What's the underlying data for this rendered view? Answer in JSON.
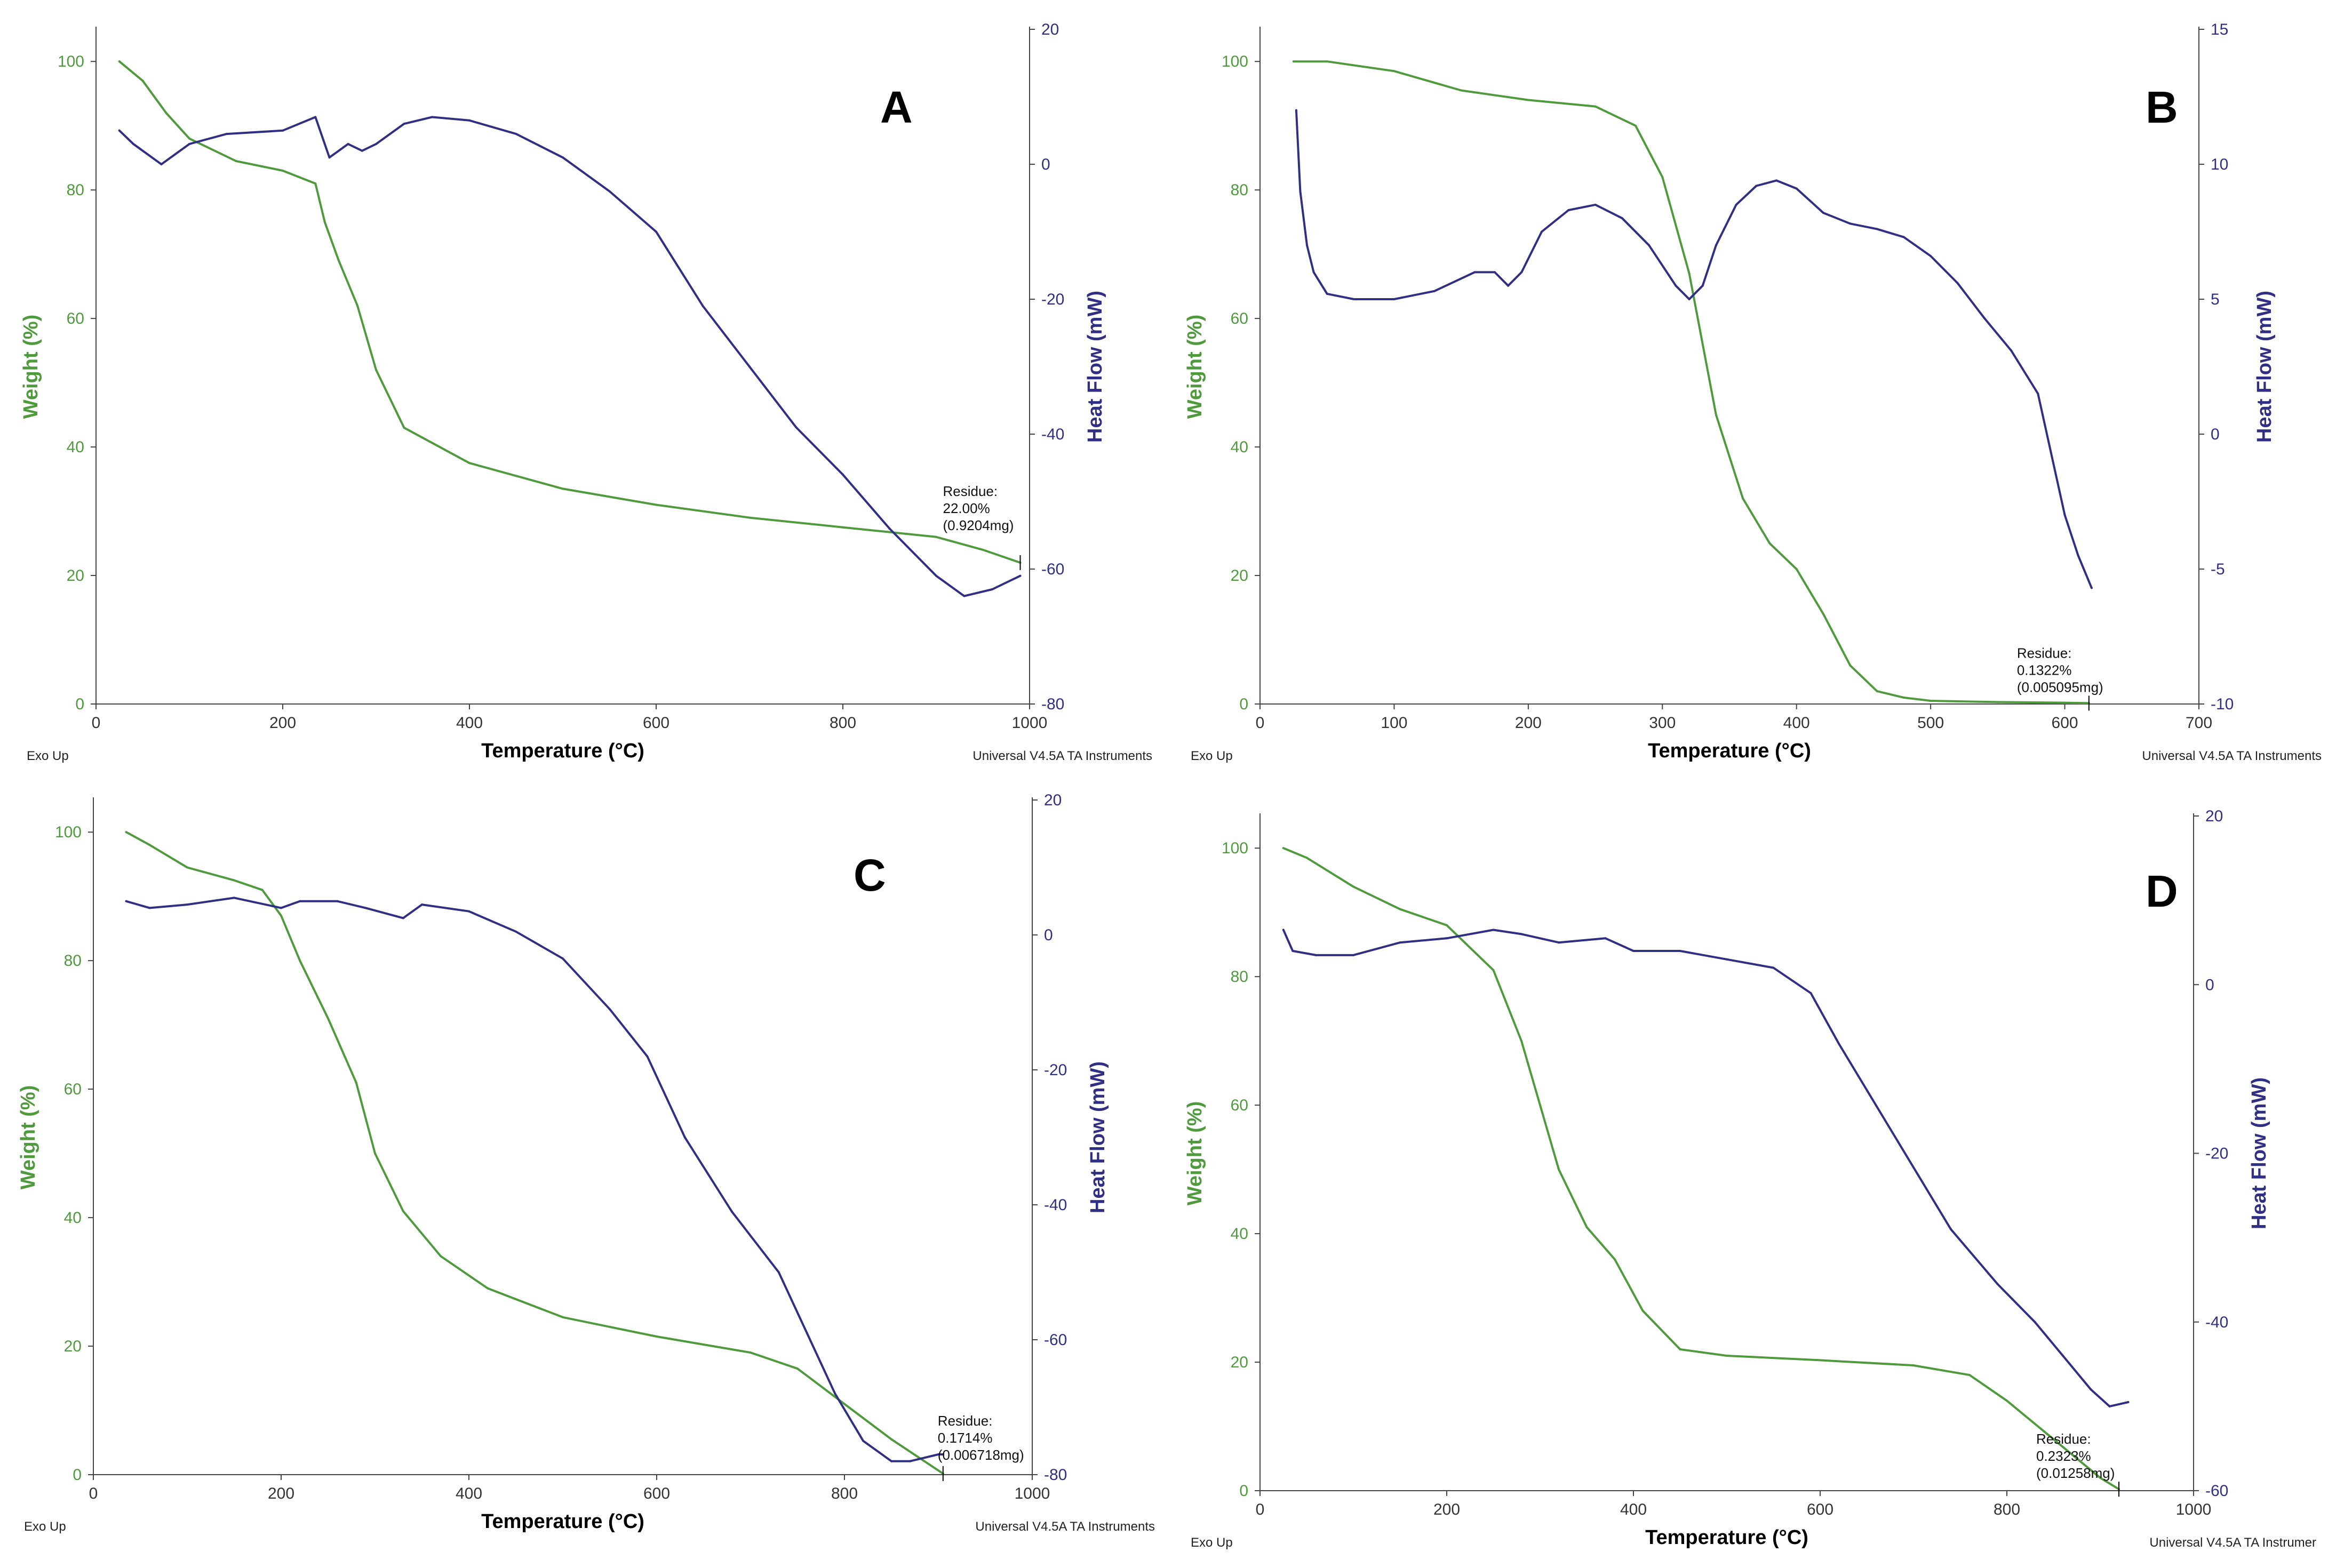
{
  "figure": {
    "colors": {
      "weight": "#4e9a3c",
      "heat": "#2f2f84",
      "axis": "#444444",
      "text": "#000000"
    }
  },
  "chart_data": [
    {
      "type": "line",
      "panel_label": "A",
      "xlabel": "Temperature (°C)",
      "ylabel_left": "Weight (%)",
      "ylabel_right": "Heat Flow (mW)",
      "footer_left": "Exo Up",
      "footer_right": "Universal V4.5A TA Instruments",
      "xlim": [
        0,
        1000
      ],
      "xticks": [
        "0",
        "200",
        "400",
        "600",
        "800",
        "1000"
      ],
      "ylim_left": [
        0,
        105
      ],
      "yticks_left": [
        "0",
        "20",
        "40",
        "60",
        "80",
        "100"
      ],
      "ylim_right": [
        -80,
        20
      ],
      "yticks_right": [
        "-80",
        "-60",
        "-40",
        "-20",
        "0",
        "20"
      ],
      "annotation": {
        "lines": [
          "Residue:",
          "22.00%",
          "(0.9204mg)"
        ],
        "temp": 990,
        "weight": 22
      },
      "series": [
        {
          "name": "Weight (%)",
          "axis": "left",
          "x": [
            25,
            50,
            75,
            100,
            150,
            200,
            235,
            245,
            260,
            280,
            300,
            330,
            400,
            500,
            600,
            700,
            800,
            900,
            950,
            990
          ],
          "y": [
            100,
            97,
            92,
            88,
            84.5,
            83,
            81,
            75,
            69,
            62,
            52,
            43,
            37.5,
            33.5,
            31,
            29,
            27.5,
            26,
            24,
            22
          ]
        },
        {
          "name": "Heat Flow (mW)",
          "axis": "right",
          "x": [
            25,
            40,
            70,
            100,
            140,
            200,
            235,
            250,
            270,
            285,
            300,
            330,
            360,
            400,
            450,
            500,
            550,
            600,
            650,
            700,
            750,
            800,
            850,
            900,
            930,
            960,
            990
          ],
          "y": [
            5,
            3,
            0,
            3,
            4.5,
            5,
            7,
            1,
            3,
            2,
            3,
            6,
            7,
            6.5,
            4.5,
            1,
            -4,
            -10,
            -21,
            -30,
            -39,
            -46,
            -54,
            -61,
            -64,
            -63,
            -61
          ]
        }
      ]
    },
    {
      "type": "line",
      "panel_label": "B",
      "xlabel": "Temperature (°C)",
      "ylabel_left": "Weight (%)",
      "ylabel_right": "Heat Flow (mW)",
      "footer_left": "Exo Up",
      "footer_right": "Universal V4.5A TA Instruments",
      "xlim": [
        0,
        700
      ],
      "xticks": [
        "0",
        "100",
        "200",
        "300",
        "400",
        "500",
        "600",
        "700"
      ],
      "ylim_left": [
        0,
        105
      ],
      "yticks_left": [
        "0",
        "20",
        "40",
        "60",
        "80",
        "100"
      ],
      "ylim_right": [
        -10,
        15
      ],
      "yticks_right": [
        "-10",
        "-5",
        "0",
        "5",
        "10",
        "15"
      ],
      "annotation": {
        "lines": [
          "Residue:",
          "0.1322%",
          "(0.005095mg)"
        ],
        "temp": 618,
        "weight": 0.13
      },
      "series": [
        {
          "name": "Weight (%)",
          "axis": "left",
          "x": [
            25,
            50,
            100,
            150,
            200,
            250,
            280,
            300,
            320,
            340,
            360,
            380,
            400,
            420,
            440,
            460,
            480,
            500,
            550,
            600,
            618
          ],
          "y": [
            100,
            100,
            98.5,
            95.5,
            94,
            93,
            90,
            82,
            67,
            45,
            32,
            25,
            21,
            14,
            6,
            2,
            1,
            0.5,
            0.3,
            0.2,
            0.13
          ]
        },
        {
          "name": "Heat Flow (mW)",
          "axis": "right",
          "x": [
            27,
            30,
            35,
            40,
            50,
            70,
            100,
            130,
            160,
            175,
            185,
            195,
            210,
            230,
            250,
            270,
            290,
            310,
            320,
            330,
            340,
            355,
            370,
            385,
            400,
            420,
            440,
            460,
            480,
            500,
            520,
            540,
            560,
            580,
            600,
            610,
            620
          ],
          "y": [
            12,
            9,
            7,
            6,
            5.2,
            5,
            5,
            5.3,
            6,
            6,
            5.5,
            6,
            7.5,
            8.3,
            8.5,
            8,
            7,
            5.5,
            5,
            5.5,
            7,
            8.5,
            9.2,
            9.4,
            9.1,
            8.2,
            7.8,
            7.6,
            7.3,
            6.6,
            5.6,
            4.3,
            3.1,
            1.5,
            -3,
            -4.5,
            -5.7
          ]
        }
      ]
    },
    {
      "type": "line",
      "panel_label": "C",
      "xlabel": "Temperature (°C)",
      "ylabel_left": "Weight (%)",
      "ylabel_right": "Heat Flow (mW)",
      "footer_left": "Exo Up",
      "footer_right": "Universal V4.5A TA Instruments",
      "xlim": [
        0,
        1000
      ],
      "xticks": [
        "0",
        "200",
        "400",
        "600",
        "800",
        "1000"
      ],
      "ylim_left": [
        0,
        105
      ],
      "yticks_left": [
        "0",
        "20",
        "40",
        "60",
        "80",
        "100"
      ],
      "ylim_right": [
        -80,
        20
      ],
      "yticks_right": [
        "-80",
        "-60",
        "-40",
        "-20",
        "0",
        "20"
      ],
      "annotation": {
        "lines": [
          "Residue:",
          "0.1714%",
          "(0.006718mg)"
        ],
        "temp": 905,
        "weight": 0.17
      },
      "series": [
        {
          "name": "Weight (%)",
          "axis": "left",
          "x": [
            35,
            60,
            100,
            150,
            180,
            200,
            220,
            250,
            280,
            300,
            330,
            370,
            420,
            500,
            600,
            700,
            750,
            800,
            850,
            905
          ],
          "y": [
            100,
            98,
            94.5,
            92.5,
            91,
            87,
            80,
            71,
            61,
            50,
            41,
            34,
            29,
            24.5,
            21.5,
            19,
            16.5,
            11,
            5.5,
            0.17
          ]
        },
        {
          "name": "Heat Flow (mW)",
          "axis": "right",
          "x": [
            35,
            60,
            100,
            150,
            200,
            220,
            260,
            290,
            330,
            350,
            400,
            450,
            500,
            550,
            590,
            630,
            680,
            730,
            760,
            790,
            820,
            850,
            870,
            900,
            905
          ],
          "y": [
            5,
            4,
            4.5,
            5.5,
            4,
            5,
            5,
            4,
            2.5,
            4.5,
            3.5,
            0.5,
            -3.5,
            -11,
            -18,
            -30,
            -41,
            -50,
            -59,
            -68,
            -75,
            -78,
            -78,
            -77,
            -77
          ]
        }
      ]
    },
    {
      "type": "line",
      "panel_label": "D",
      "xlabel": "Temperature (°C)",
      "ylabel_left": "Weight (%)",
      "ylabel_right": "Heat Flow (mW)",
      "footer_left": "Exo Up",
      "footer_right": "Universal V4.5A TA Instrumer",
      "xlim": [
        0,
        1000
      ],
      "xticks": [
        "0",
        "200",
        "400",
        "600",
        "800",
        "1000"
      ],
      "ylim_left": [
        0,
        105
      ],
      "yticks_left": [
        "0",
        "20",
        "40",
        "60",
        "80",
        "100"
      ],
      "ylim_right": [
        -60,
        20
      ],
      "yticks_right": [
        "-60",
        "-40",
        "-20",
        "0",
        "20"
      ],
      "annotation": {
        "lines": [
          "Residue:",
          "0.2323%",
          "(0.01258mg)"
        ],
        "temp": 920,
        "weight": 0.23
      },
      "series": [
        {
          "name": "Weight (%)",
          "axis": "left",
          "x": [
            25,
            50,
            100,
            150,
            200,
            250,
            280,
            300,
            320,
            350,
            380,
            410,
            450,
            500,
            600,
            700,
            760,
            800,
            850,
            900,
            920
          ],
          "y": [
            100,
            98.5,
            94,
            90.5,
            88,
            81,
            70,
            60,
            50,
            41,
            36,
            28,
            22,
            21,
            20.3,
            19.5,
            18,
            14,
            8,
            2,
            0.23
          ]
        },
        {
          "name": "Heat Flow (mW)",
          "axis": "right",
          "x": [
            25,
            35,
            60,
            100,
            150,
            200,
            250,
            280,
            320,
            370,
            400,
            450,
            500,
            550,
            590,
            620,
            680,
            740,
            790,
            830,
            860,
            890,
            910,
            930
          ],
          "y": [
            6.5,
            4,
            3.5,
            3.5,
            5,
            5.5,
            6.5,
            6,
            5,
            5.5,
            4,
            4,
            3,
            2,
            -1,
            -7,
            -18,
            -29,
            -35.5,
            -40,
            -44,
            -48,
            -50,
            -49.5
          ]
        }
      ]
    }
  ]
}
